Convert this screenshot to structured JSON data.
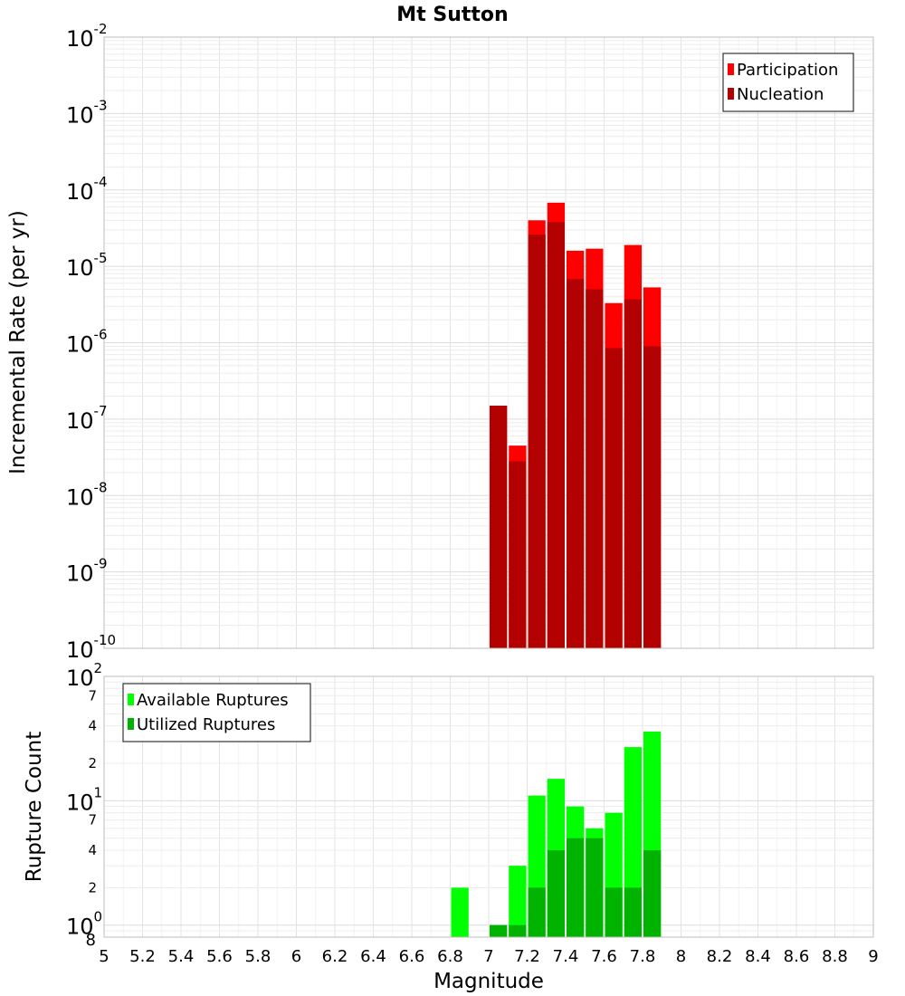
{
  "chart_data": [
    {
      "type": "bar",
      "title": "Mt Sutton",
      "xlabel": "Magnitude",
      "ylabel": "Incremental Rate (per yr)",
      "xlim": [
        5,
        9
      ],
      "ylim": [
        1e-10,
        0.01
      ],
      "yscale": "log",
      "grid": true,
      "legend_position": "top-right",
      "x_ticks": [
        "5",
        "5.2",
        "5.4",
        "5.6",
        "5.8",
        "6",
        "6.2",
        "6.4",
        "6.6",
        "6.8",
        "7",
        "7.2",
        "7.4",
        "7.6",
        "7.8",
        "8",
        "8.2",
        "8.4",
        "8.6",
        "8.8",
        "9"
      ],
      "y_ticks": [
        {
          "base": "10",
          "exp": "-2"
        },
        {
          "base": "10",
          "exp": "-3"
        },
        {
          "base": "10",
          "exp": "-4"
        },
        {
          "base": "10",
          "exp": "-5"
        },
        {
          "base": "10",
          "exp": "-6"
        },
        {
          "base": "10",
          "exp": "-7"
        },
        {
          "base": "10",
          "exp": "-8"
        },
        {
          "base": "10",
          "exp": "-9"
        },
        {
          "base": "10",
          "exp": "-10"
        }
      ],
      "x": [
        7.05,
        7.15,
        7.25,
        7.35,
        7.45,
        7.55,
        7.65,
        7.75,
        7.85
      ],
      "series": [
        {
          "name": "Participation",
          "color": "#ff0000",
          "values": [
            1.5e-07,
            4.5e-08,
            4e-05,
            6.8e-05,
            1.6e-05,
            1.7e-05,
            3.3e-06,
            1.9e-05,
            5.3e-06
          ]
        },
        {
          "name": "Nucleation",
          "color": "#b30000",
          "values": [
            1.5e-07,
            2.8e-08,
            2.6e-05,
            3.8e-05,
            6.8e-06,
            5e-06,
            8.5e-07,
            3.7e-06,
            9e-07
          ]
        }
      ]
    },
    {
      "type": "bar",
      "title": "",
      "xlabel": "Magnitude",
      "ylabel": "Rupture Count",
      "xlim": [
        5,
        9
      ],
      "ylim": [
        0.8,
        100
      ],
      "yscale": "log",
      "grid": true,
      "legend_position": "top-left",
      "y_ticks": [
        {
          "base": "10",
          "exp": "2"
        },
        {
          "base": "10",
          "exp": "1"
        },
        {
          "base": "10",
          "exp": "0"
        }
      ],
      "y_minor_labels": [
        {
          "value": 70,
          "label": "7"
        },
        {
          "value": 40,
          "label": "4"
        },
        {
          "value": 20,
          "label": "2"
        },
        {
          "value": 7,
          "label": "7"
        },
        {
          "value": 4,
          "label": "4"
        },
        {
          "value": 2,
          "label": "2"
        },
        {
          "value": 0.8,
          "label": "8"
        }
      ],
      "x": [
        6.85,
        7.05,
        7.15,
        7.25,
        7.35,
        7.45,
        7.55,
        7.65,
        7.75,
        7.85
      ],
      "series": [
        {
          "name": "Available Ruptures",
          "color": "#00ff00",
          "values": [
            2,
            1,
            3,
            11,
            15,
            9,
            6,
            8,
            27,
            36
          ]
        },
        {
          "name": "Utilized Ruptures",
          "color": "#00b300",
          "values": [
            0,
            1,
            1,
            2,
            4,
            5,
            5,
            2,
            2,
            4
          ]
        }
      ]
    }
  ]
}
